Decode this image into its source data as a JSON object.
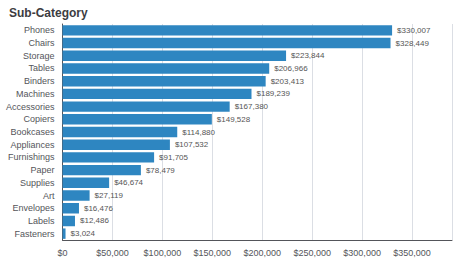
{
  "chart_data": {
    "type": "bar",
    "orientation": "horizontal",
    "title": "Sub-Category",
    "categories": [
      "Fasteners",
      "Labels",
      "Envelopes",
      "Art",
      "Supplies",
      "Paper",
      "Furnishings",
      "Appliances",
      "Bookcases",
      "Copiers",
      "Accessories",
      "Machines",
      "Binders",
      "Tables",
      "Storage",
      "Chairs",
      "Phones"
    ],
    "values": [
      3024,
      12486,
      16476,
      27119,
      46674,
      78479,
      91705,
      107532,
      114880,
      149528,
      167380,
      189239,
      203413,
      206966,
      223844,
      328449,
      330007
    ],
    "value_labels": [
      "$3,024",
      "$12,486",
      "$16,476",
      "$27,119",
      "$46,674",
      "$78,479",
      "$91,705",
      "$107,532",
      "$114,880",
      "$149,528",
      "$167,380",
      "$189,239",
      "$203,413",
      "$206,966",
      "$223,844",
      "$328,449",
      "$330,007"
    ],
    "color": "#2e86c1",
    "xlim": [
      0,
      390000
    ],
    "xticks": [
      {
        "value": 0,
        "label": "$0"
      },
      {
        "value": 50000,
        "label": "$50,000"
      },
      {
        "value": 100000,
        "label": "$100,000"
      },
      {
        "value": 150000,
        "label": "$150,000"
      },
      {
        "value": 200000,
        "label": "$200,000"
      },
      {
        "value": 250000,
        "label": "$250,000"
      },
      {
        "value": 300000,
        "label": "$300,000"
      },
      {
        "value": 350000,
        "label": "$350,000"
      }
    ],
    "grid": true,
    "data_labels": true
  }
}
